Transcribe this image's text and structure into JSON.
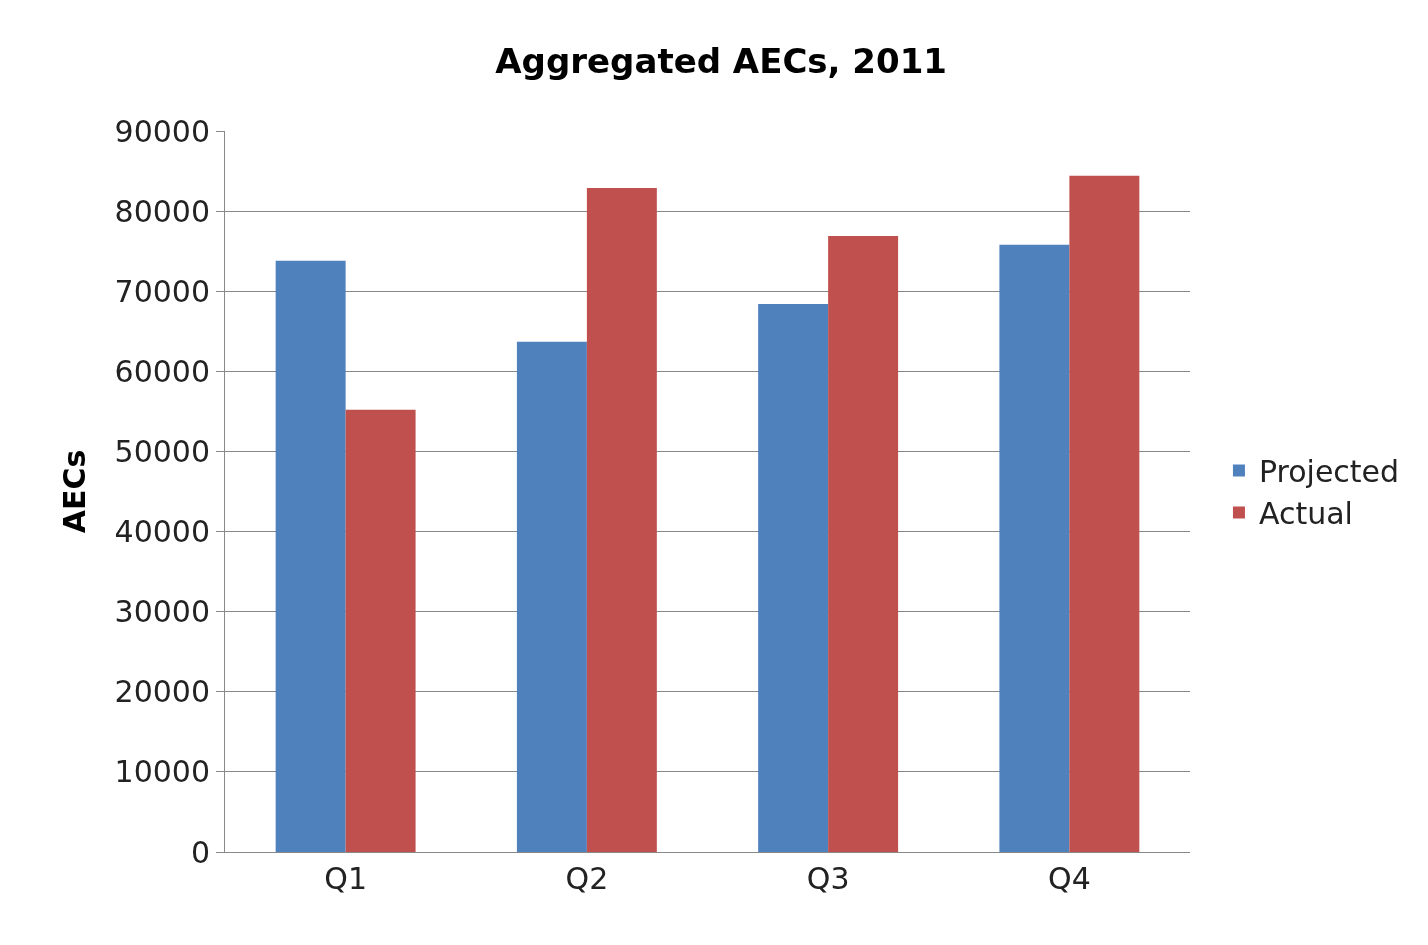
{
  "chart_data": {
    "type": "bar",
    "title": "Aggregated AECs, 2011",
    "ylabel": "AECs",
    "categories": [
      "Q1",
      "Q2",
      "Q3",
      "Q4"
    ],
    "series": [
      {
        "name": "Projected",
        "color": "#4f81bd",
        "values": [
          73800,
          63700,
          68400,
          75800
        ]
      },
      {
        "name": "Actual",
        "color": "#c0504d",
        "values": [
          55200,
          82900,
          76900,
          84400
        ]
      }
    ],
    "ylim": [
      0,
      90000
    ],
    "yticks": [
      0,
      10000,
      20000,
      30000,
      40000,
      50000,
      60000,
      70000,
      80000,
      90000
    ],
    "grid": "y",
    "legend": "right"
  }
}
